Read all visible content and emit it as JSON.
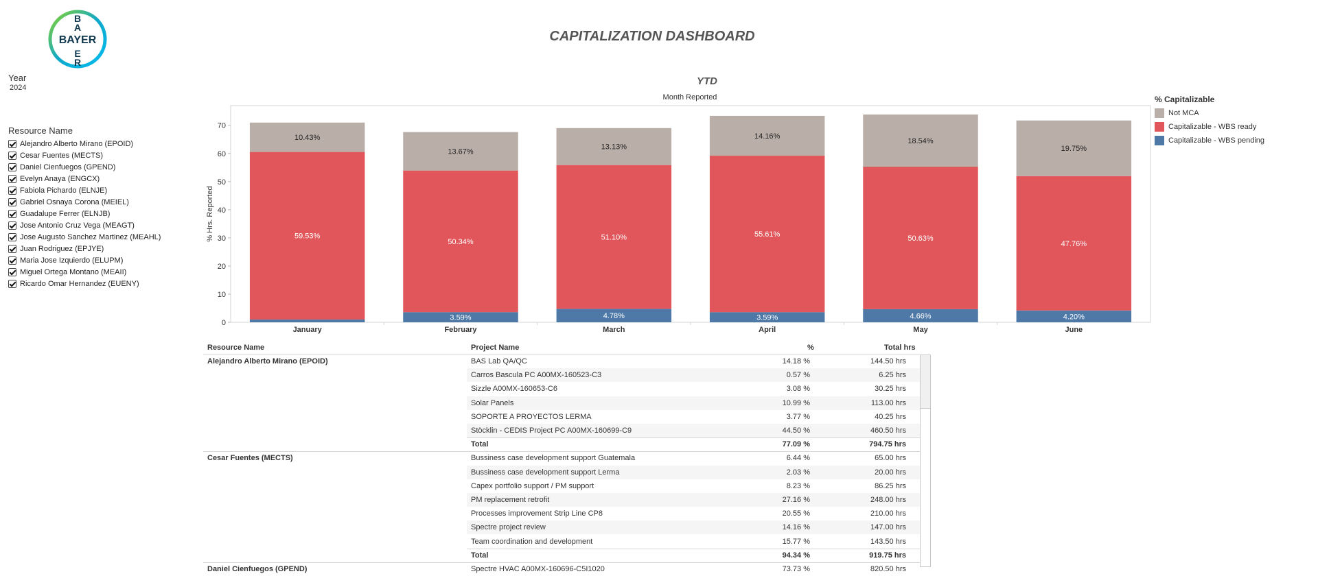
{
  "dashboard": {
    "title": "CAPITALIZATION DASHBOARD",
    "logo_text": "BAYER"
  },
  "filters": {
    "year_label": "Year",
    "year_value": "2024",
    "resource_label": "Resource Name",
    "resources": [
      "Alejandro Alberto Mirano (EPOID)",
      "Cesar Fuentes (MECTS)",
      "Daniel Cienfuegos (GPEND)",
      "Evelyn Anaya (ENGCX)",
      "Fabiola Pichardo (ELNJE)",
      "Gabriel Osnaya Corona (MEIEL)",
      "Guadalupe Ferrer (ELNJB)",
      "Jose Antonio Cruz Vega (MEAGT)",
      "Jose Augusto Sanchez Martinez (MEAHL)",
      "Juan Rodriguez (EPJYE)",
      "Maria Jose Izquierdo (ELUPM)",
      "Miguel Ortega Montano (MEAII)",
      "Ricardo Omar Hernandez (EUENY)"
    ]
  },
  "legend": {
    "title": "% Capitalizable",
    "items": [
      {
        "label": "Not MCA",
        "color": "#b9aea8"
      },
      {
        "label": "Capitalizable - WBS ready",
        "color": "#e0565b"
      },
      {
        "label": "Capitalizable - WBS pending",
        "color": "#4e79a7"
      }
    ]
  },
  "chart_data": {
    "type": "bar",
    "stacked": true,
    "title": "YTD",
    "xlabel": "Month Reported",
    "ylabel": "% Hrs. Reported",
    "ylim": [
      0,
      77
    ],
    "yticks": [
      0,
      10,
      20,
      30,
      40,
      50,
      60,
      70
    ],
    "categories": [
      "January",
      "February",
      "March",
      "April",
      "May",
      "June"
    ],
    "series": [
      {
        "name": "Capitalizable - WBS pending",
        "color": "#4e79a7",
        "values": [
          1.0,
          3.59,
          4.78,
          3.59,
          4.66,
          4.2
        ],
        "labels": [
          "",
          "3.59%",
          "4.78%",
          "3.59%",
          "4.66%",
          "4.20%"
        ]
      },
      {
        "name": "Capitalizable - WBS ready",
        "color": "#e0565b",
        "values": [
          59.53,
          50.34,
          51.1,
          55.61,
          50.63,
          47.76
        ],
        "labels": [
          "59.53%",
          "50.34%",
          "51.10%",
          "55.61%",
          "50.63%",
          "47.76%"
        ]
      },
      {
        "name": "Not MCA",
        "color": "#b9aea8",
        "values": [
          10.43,
          13.67,
          13.13,
          14.16,
          18.54,
          19.75
        ],
        "labels": [
          "10.43%",
          "13.67%",
          "13.13%",
          "14.16%",
          "18.54%",
          "19.75%"
        ]
      }
    ]
  },
  "table": {
    "headers": {
      "resource": "Resource Name",
      "project": "Project Name",
      "pct": "%",
      "hrs": "Total hrs"
    },
    "groups": [
      {
        "resource": "Alejandro Alberto Mirano (EPOID)",
        "rows": [
          {
            "project": "BAS Lab QA/QC",
            "pct": "14.18 %",
            "hrs": "144.50 hrs"
          },
          {
            "project": "Carros Bascula PC A00MX-160523-C3",
            "pct": "0.57 %",
            "hrs": "6.25 hrs"
          },
          {
            "project": "Sizzle A00MX-160653-C6",
            "pct": "3.08 %",
            "hrs": "30.25 hrs"
          },
          {
            "project": "Solar Panels",
            "pct": "10.99 %",
            "hrs": "113.00 hrs"
          },
          {
            "project": "SOPORTE A PROYECTOS LERMA",
            "pct": "3.77 %",
            "hrs": "40.25 hrs"
          },
          {
            "project": "Stöcklin - CEDIS Project PC A00MX-160699-C9",
            "pct": "44.50 %",
            "hrs": "460.50 hrs"
          },
          {
            "project": "Total",
            "pct": "77.09 %",
            "hrs": "794.75 hrs",
            "total": true
          }
        ]
      },
      {
        "resource": "Cesar Fuentes (MECTS)",
        "rows": [
          {
            "project": "Bussiness case development support Guatemala",
            "pct": "6.44 %",
            "hrs": "65.00 hrs"
          },
          {
            "project": "Bussiness case development support Lerma",
            "pct": "2.03 %",
            "hrs": "20.00 hrs"
          },
          {
            "project": "Capex portfolio support / PM support",
            "pct": "8.23 %",
            "hrs": "86.25 hrs"
          },
          {
            "project": "PM replacement retrofit",
            "pct": "27.16 %",
            "hrs": "248.00 hrs"
          },
          {
            "project": "Processes improvement Strip Line CP8",
            "pct": "20.55 %",
            "hrs": "210.00 hrs"
          },
          {
            "project": "Spectre project review",
            "pct": "14.16 %",
            "hrs": "147.00 hrs"
          },
          {
            "project": "Team coordination and development",
            "pct": "15.77 %",
            "hrs": "143.50 hrs"
          },
          {
            "project": "Total",
            "pct": "94.34 %",
            "hrs": "919.75 hrs",
            "total": true
          }
        ]
      },
      {
        "resource": "Daniel Cienfuegos (GPEND)",
        "rows": [
          {
            "project": "Spectre HVAC A00MX-160696-C5I1020",
            "pct": "73.73 %",
            "hrs": "820.50 hrs"
          }
        ]
      }
    ]
  }
}
